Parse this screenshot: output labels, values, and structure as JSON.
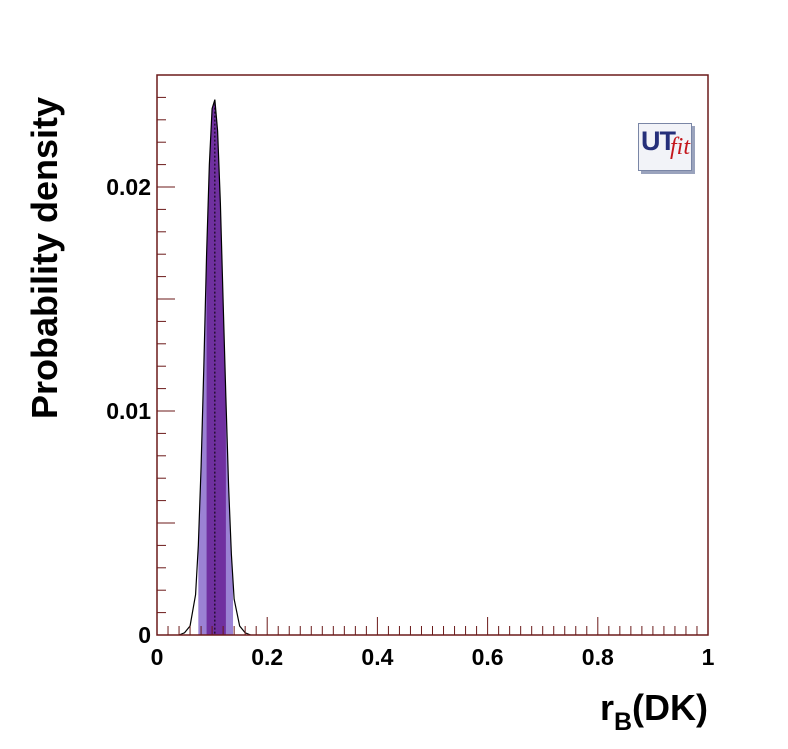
{
  "chart_data": {
    "type": "area",
    "title": "",
    "xlabel_main": "r",
    "xlabel_sub": "B",
    "xlabel_rest": "(DK)",
    "ylabel": "Probability density",
    "xlim": [
      0,
      1
    ],
    "ylim": [
      0,
      0.025
    ],
    "x_ticks": [
      0,
      0.2,
      0.4,
      0.6,
      0.8,
      1
    ],
    "x_tick_labels": [
      "0",
      "0.2",
      "0.4",
      "0.6",
      "0.8",
      "1"
    ],
    "y_ticks": [
      0,
      0.01,
      0.02
    ],
    "y_tick_labels": [
      "0",
      "0.01",
      "0.02"
    ],
    "distribution": {
      "peak_x": 0.105,
      "peak_density": 0.0239,
      "x": [
        0.04,
        0.05,
        0.06,
        0.07,
        0.075,
        0.08,
        0.085,
        0.09,
        0.095,
        0.1,
        0.105,
        0.11,
        0.115,
        0.12,
        0.125,
        0.13,
        0.135,
        0.14,
        0.15,
        0.16,
        0.17
      ],
      "y": [
        0.0,
        0.0001,
        0.0004,
        0.0018,
        0.004,
        0.0075,
        0.012,
        0.017,
        0.021,
        0.0235,
        0.0239,
        0.0225,
        0.0193,
        0.0149,
        0.0106,
        0.0066,
        0.0036,
        0.0016,
        0.0004,
        0.0001,
        0.0
      ]
    },
    "interval_68": [
      0.09,
      0.125
    ],
    "interval_95": [
      0.075,
      0.138
    ],
    "grid": false,
    "legend": "none"
  },
  "colors": {
    "frame": "#6b1a1a",
    "interval_68": "#7030a0",
    "interval_95": "#9b82d4",
    "curve": "#000000"
  },
  "logo": {
    "ut": "UT",
    "fit": "fit"
  }
}
